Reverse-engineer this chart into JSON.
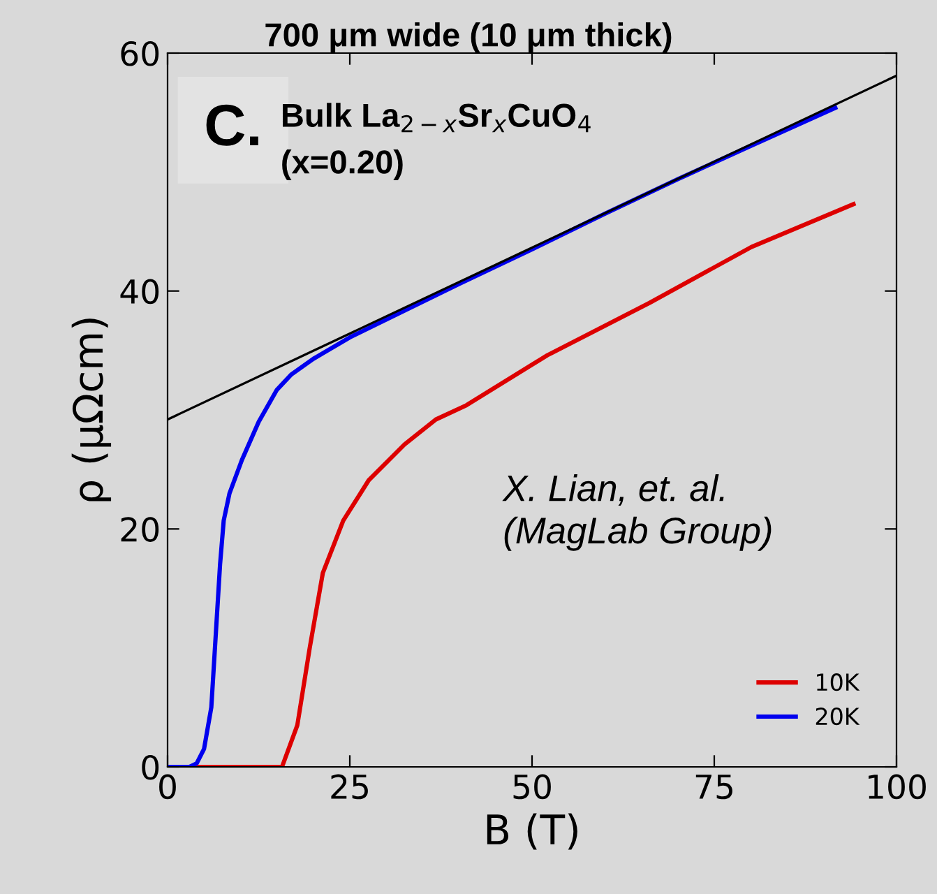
{
  "chart_data": {
    "type": "line",
    "title": "700 μm wide (10 μm thick)",
    "xlabel": "B (T)",
    "ylabel": "ρ (μΩcm)",
    "xlim": [
      0,
      100
    ],
    "xticks": [
      0,
      25,
      50,
      75,
      100
    ],
    "ylim": [
      0,
      60
    ],
    "yticks": [
      0,
      20,
      40,
      60
    ],
    "series": [
      {
        "name": "10K",
        "color": "#dd0000",
        "x": [
          0,
          10,
          15.7,
          17.8,
          19.5,
          21.3,
          24.1,
          27.6,
          32.5,
          36.8,
          41,
          52.1,
          66.1,
          80.1,
          94.1
        ],
        "values": [
          0,
          0,
          0,
          3.5,
          10,
          16.3,
          20.7,
          24.1,
          27.1,
          29.2,
          30.4,
          34.6,
          39.0,
          43.7,
          47.3
        ]
      },
      {
        "name": "20K",
        "color": "#0000ee",
        "x": [
          0,
          3,
          4,
          5,
          6,
          6.7,
          7.2,
          7.7,
          8.5,
          10.2,
          12.5,
          15,
          17,
          20,
          25,
          30,
          40,
          50,
          60,
          70,
          80,
          91.6
        ],
        "values": [
          0,
          0,
          0.3,
          1.5,
          5,
          12,
          17,
          20.7,
          23,
          25.8,
          29,
          31.7,
          33.0,
          34.3,
          36.1,
          37.6,
          40.6,
          43.5,
          46.5,
          49.4,
          52.2,
          55.4
        ]
      },
      {
        "color": "#000000",
        "x": [
          0,
          100
        ],
        "values": [
          29.2,
          58.1
        ]
      }
    ],
    "annotations": [
      "C.",
      "Bulk La$_{2−x}$Sr$_{x}$CuO$_{4}$",
      "(x=0.20)",
      "X. Lian, et. al.\n(MagLab Group)"
    ],
    "legend": "bottom right",
    "grid": false
  }
}
